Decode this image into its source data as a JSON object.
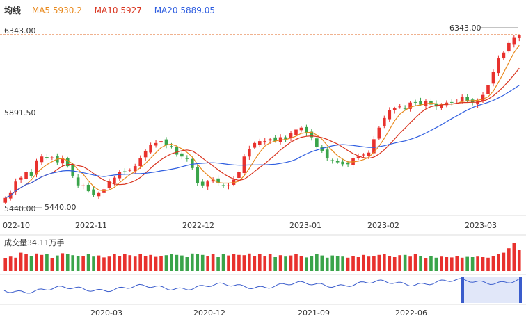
{
  "legend": {
    "title": "均线",
    "ma5": "MA5 5930.2",
    "ma10": "MA10 5927",
    "ma20": "MA20 5889.05"
  },
  "price_axis": {
    "top": "6343.00",
    "mid": "5891.50",
    "bottom": "5440.00"
  },
  "markers": {
    "high": "6343.00",
    "low": "5440.00"
  },
  "volume_label": "成交量34.11万手",
  "colors": {
    "up": "#e8312d",
    "down": "#3aa44a",
    "ma5": "#e8891d",
    "ma10": "#d9341f",
    "ma20": "#2f5ee0",
    "nav": "#3a5ccc"
  },
  "chart_data": {
    "type": "candlestick",
    "ylim": [
      5440,
      6343
    ],
    "x_ticks": [
      "022-10",
      "2022-11",
      "2022-12",
      "2023-01",
      "2023-02",
      "2023-03"
    ],
    "nav_ticks": [
      "2020-03",
      "2020-12",
      "2021-09",
      "2022-06"
    ],
    "closes": [
      5495,
      5520,
      5580,
      5600,
      5630,
      5610,
      5690,
      5710,
      5700,
      5705,
      5680,
      5700,
      5660,
      5610,
      5560,
      5560,
      5530,
      5510,
      5520,
      5540,
      5580,
      5600,
      5630,
      5630,
      5640,
      5660,
      5700,
      5740,
      5770,
      5780,
      5790,
      5770,
      5760,
      5720,
      5710,
      5700,
      5650,
      5570,
      5560,
      5580,
      5590,
      5570,
      5560,
      5560,
      5590,
      5630,
      5710,
      5750,
      5780,
      5790,
      5790,
      5800,
      5790,
      5810,
      5800,
      5830,
      5850,
      5860,
      5830,
      5810,
      5760,
      5740,
      5700,
      5690,
      5680,
      5670,
      5670,
      5700,
      5710,
      5720,
      5730,
      5800,
      5860,
      5910,
      5950,
      5960,
      5970,
      5960,
      5990,
      5990,
      5980,
      6000,
      5980,
      5970,
      5980,
      5990,
      5990,
      6000,
      6020,
      6000,
      5990,
      6000,
      6030,
      6080,
      6150,
      6220,
      6250,
      6300,
      6330,
      6343
    ],
    "volumes": [
      0.45,
      0.52,
      0.48,
      0.66,
      0.62,
      0.55,
      0.63,
      0.58,
      0.6,
      0.47,
      0.56,
      0.64,
      0.61,
      0.57,
      0.53,
      0.55,
      0.6,
      0.52,
      0.56,
      0.49,
      0.52,
      0.6,
      0.55,
      0.6,
      0.57,
      0.52,
      0.62,
      0.55,
      0.58,
      0.51,
      0.55,
      0.57,
      0.6,
      0.58,
      0.56,
      0.5,
      0.63,
      0.62,
      0.58,
      0.55,
      0.6,
      0.5,
      0.62,
      0.56,
      0.6,
      0.58,
      0.57,
      0.63,
      0.55,
      0.6,
      0.54,
      0.62,
      0.5,
      0.57,
      0.52,
      0.56,
      0.6,
      0.54,
      0.49,
      0.55,
      0.6,
      0.56,
      0.48,
      0.56,
      0.55,
      0.52,
      0.48,
      0.55,
      0.5,
      0.58,
      0.52,
      0.55,
      0.58,
      0.6,
      0.55,
      0.5,
      0.57,
      0.58,
      0.52,
      0.6,
      0.53,
      0.46,
      0.55,
      0.48,
      0.52,
      0.5,
      0.49,
      0.53,
      0.48,
      0.51,
      0.5,
      0.52,
      0.5,
      0.48,
      0.55,
      0.62,
      0.66,
      0.82,
      1.0,
      0.75
    ]
  }
}
